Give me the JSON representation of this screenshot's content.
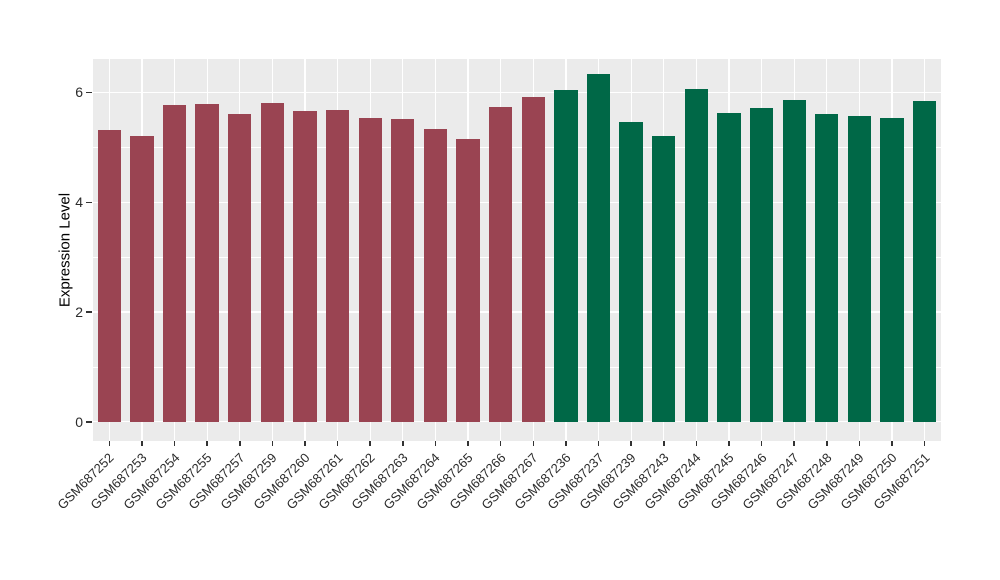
{
  "chart_data": {
    "type": "bar",
    "title": "",
    "xlabel": "",
    "ylabel": "Expression Level",
    "ylim": [
      -0.35,
      6.61
    ],
    "yticks": [
      0,
      2,
      4,
      6
    ],
    "yminor": [
      1,
      3,
      5
    ],
    "grid": true,
    "legend": false,
    "panel_bg": "#EBEBEB",
    "grid_color": "#FFFFFF",
    "bar_width_frac": 0.715,
    "categories": [
      "GSM687252",
      "GSM687253",
      "GSM687254",
      "GSM687255",
      "GSM687257",
      "GSM687259",
      "GSM687260",
      "GSM687261",
      "GSM687262",
      "GSM687263",
      "GSM687264",
      "GSM687265",
      "GSM687266",
      "GSM687267",
      "GSM687236",
      "GSM687237",
      "GSM687239",
      "GSM687243",
      "GSM687244",
      "GSM687245",
      "GSM687246",
      "GSM687247",
      "GSM687248",
      "GSM687249",
      "GSM687250",
      "GSM687251"
    ],
    "values": [
      5.31,
      5.2,
      5.77,
      5.79,
      5.61,
      5.81,
      5.67,
      5.68,
      5.54,
      5.51,
      5.33,
      5.15,
      5.74,
      5.92,
      6.05,
      6.33,
      5.46,
      5.2,
      6.06,
      5.62,
      5.72,
      5.86,
      5.61,
      5.57,
      5.54,
      5.85
    ],
    "groups": [
      0,
      0,
      0,
      0,
      0,
      0,
      0,
      0,
      0,
      0,
      0,
      0,
      0,
      0,
      1,
      1,
      1,
      1,
      1,
      1,
      1,
      1,
      1,
      1,
      1,
      1
    ],
    "group_colors": [
      "#9A4452",
      "#006847"
    ]
  }
}
